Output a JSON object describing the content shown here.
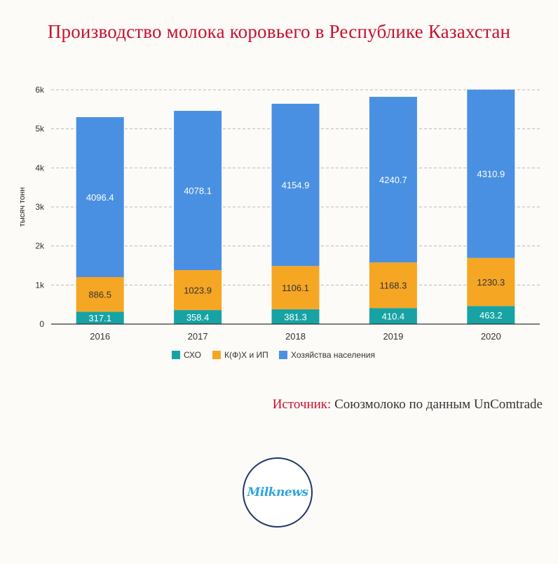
{
  "title": "Производство молока коровьего в Республике Казахстан",
  "source_label": "Источник:",
  "source_text": "Союзмолоко по данным UnComtrade",
  "logo_text": "Milknews",
  "chart_data": {
    "type": "bar",
    "stacked": true,
    "categories": [
      "2016",
      "2017",
      "2018",
      "2019",
      "2020"
    ],
    "ylabel": "тысяч тонн",
    "xlabel": "",
    "ylim": [
      0,
      6000
    ],
    "yticks": [
      0,
      1000,
      2000,
      3000,
      4000,
      5000,
      6000
    ],
    "ytick_labels": [
      "0",
      "1k",
      "2k",
      "3k",
      "4k",
      "5k",
      "6k"
    ],
    "grid": true,
    "legend_position": "bottom",
    "series": [
      {
        "name": "СХО",
        "color": "#17a3a3",
        "values": [
          317.1,
          358.4,
          381.3,
          410.4,
          463.2
        ],
        "labels": [
          "317.1",
          "358.4",
          "381.3",
          "410.4",
          "463.2"
        ]
      },
      {
        "name": "К(Ф)Х и ИП",
        "color": "#f5a623",
        "values": [
          886.5,
          1023.9,
          1106.1,
          1168.3,
          1230.3
        ],
        "labels": [
          "886.5",
          "1023.9",
          "1106.1",
          "1168.3",
          "1230.3"
        ]
      },
      {
        "name": "Хозяйства населения",
        "color": "#4a90e2",
        "values": [
          4096.4,
          4078.1,
          4154.9,
          4240.7,
          4310.9
        ],
        "labels": [
          "4096.4",
          "4078.1",
          "4154.9",
          "4240.7",
          "4310.9"
        ]
      }
    ]
  }
}
